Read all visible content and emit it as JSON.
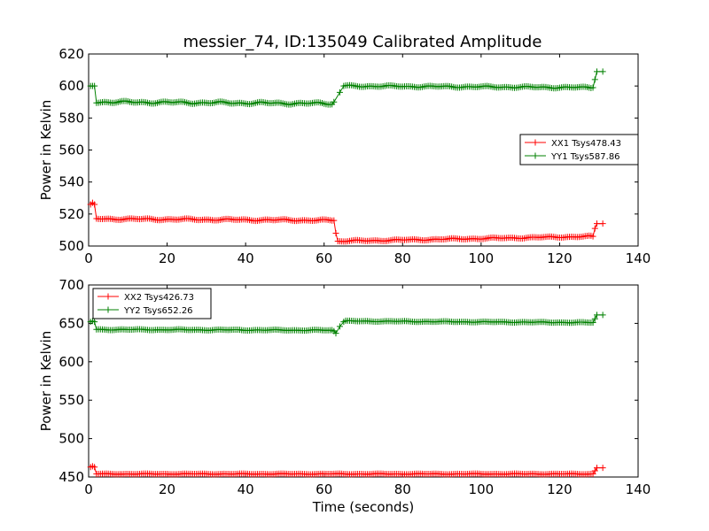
{
  "title": "messier_74, ID:135049 Calibrated Amplitude",
  "chart_data": [
    {
      "type": "line",
      "name": "top-panel",
      "ylabel": "Power in Kelvin",
      "xlabel": "",
      "xlim": [
        0,
        140
      ],
      "ylim": [
        500,
        620
      ],
      "xticks": [
        "0",
        "20",
        "40",
        "60",
        "80",
        "100",
        "120",
        "140"
      ],
      "yticks": [
        "500",
        "520",
        "540",
        "560",
        "580",
        "600",
        "620"
      ],
      "legend_position": "right",
      "series": [
        {
          "name": "XX1 Tsys478.43",
          "color": "#ff0000",
          "segments": [
            {
              "x": [
                0.5,
                1,
                1.5
              ],
              "y": [
                526,
                527,
                526
              ]
            },
            {
              "x": [
                2,
                62
              ],
              "y": [
                517,
                516
              ],
              "wobble": 0.6
            },
            {
              "x": [
                62.5,
                63
              ],
              "y": [
                516,
                508
              ]
            },
            {
              "x": [
                63.5,
                128
              ],
              "y": [
                503,
                506
              ],
              "wobble": 0.5
            },
            {
              "x": [
                128.5,
                129
              ],
              "y": [
                506,
                511
              ]
            },
            {
              "x": [
                129.5,
                131
              ],
              "y": [
                514,
                514
              ]
            }
          ]
        },
        {
          "name": "YY1 Tsys587.86",
          "color": "#008000",
          "segments": [
            {
              "x": [
                0.5,
                1,
                1.5
              ],
              "y": [
                600,
                600,
                600
              ]
            },
            {
              "x": [
                2,
                62
              ],
              "y": [
                590,
                589
              ],
              "wobble": 0.8
            },
            {
              "x": [
                62.5,
                64,
                65
              ],
              "y": [
                590,
                596,
                600
              ]
            },
            {
              "x": [
                65.5,
                128
              ],
              "y": [
                600,
                599
              ],
              "wobble": 0.6
            },
            {
              "x": [
                128.5,
                129
              ],
              "y": [
                599,
                604
              ]
            },
            {
              "x": [
                129.5,
                131
              ],
              "y": [
                609,
                609
              ]
            }
          ]
        }
      ]
    },
    {
      "type": "line",
      "name": "bottom-panel",
      "ylabel": "Power in Kelvin",
      "xlabel": "Time (seconds)",
      "xlim": [
        0,
        140
      ],
      "ylim": [
        450,
        700
      ],
      "xticks": [
        "0",
        "20",
        "40",
        "60",
        "80",
        "100",
        "120",
        "140"
      ],
      "yticks": [
        "450",
        "500",
        "550",
        "600",
        "650",
        "700"
      ],
      "legend_position": "upper-left",
      "series": [
        {
          "name": "XX2 Tsys426.73",
          "color": "#ff0000",
          "segments": [
            {
              "x": [
                0.5,
                1,
                1.5
              ],
              "y": [
                463,
                464,
                463
              ]
            },
            {
              "x": [
                2,
                128
              ],
              "y": [
                454,
                454
              ],
              "wobble": 0.5
            },
            {
              "x": [
                128.5,
                129
              ],
              "y": [
                454,
                458
              ]
            },
            {
              "x": [
                129.5,
                131
              ],
              "y": [
                462,
                462
              ]
            }
          ]
        },
        {
          "name": "YY2 Tsys652.26",
          "color": "#008000",
          "segments": [
            {
              "x": [
                0.5,
                1,
                1.5
              ],
              "y": [
                652,
                653,
                652
              ]
            },
            {
              "x": [
                2,
                62
              ],
              "y": [
                642,
                641
              ],
              "wobble": 0.7
            },
            {
              "x": [
                62.5,
                63,
                64,
                65
              ],
              "y": [
                640,
                637,
                646,
                652
              ]
            },
            {
              "x": [
                65.5,
                128
              ],
              "y": [
                653,
                651
              ],
              "wobble": 0.6
            },
            {
              "x": [
                128.5,
                129
              ],
              "y": [
                651,
                656
              ]
            },
            {
              "x": [
                129.5,
                131
              ],
              "y": [
                661,
                661
              ]
            }
          ]
        }
      ]
    }
  ]
}
